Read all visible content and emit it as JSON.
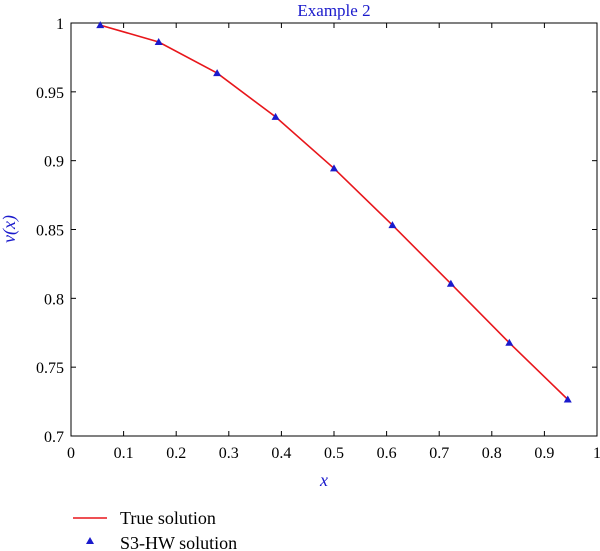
{
  "chart_data": {
    "type": "line",
    "title": "Example 2",
    "xlabel": "x",
    "ylabel": "v(x)",
    "xlim": [
      0,
      1
    ],
    "ylim": [
      0.7,
      1
    ],
    "x_ticks": [
      0,
      0.1,
      0.2,
      0.3,
      0.4,
      0.5,
      0.6,
      0.7,
      0.8,
      0.9,
      1
    ],
    "x_tick_labels": [
      "0",
      "0.1",
      "0.2",
      "0.3",
      "0.4",
      "0.5",
      "0.6",
      "0.7",
      "0.8",
      "0.9",
      "1"
    ],
    "y_ticks": [
      0.7,
      0.75,
      0.8,
      0.85,
      0.9,
      0.95,
      1
    ],
    "y_tick_labels": [
      "0.7",
      "0.75",
      "0.8",
      "0.85",
      "0.9",
      "0.95",
      "1"
    ],
    "grid": false,
    "legend_position": "below",
    "series": [
      {
        "name": "True solution",
        "kind": "line",
        "color": "#e8161b",
        "x": [
          0.0556,
          0.1667,
          0.2778,
          0.3889,
          0.5,
          0.6111,
          0.7222,
          0.8333,
          0.9444
        ],
        "y": [
          0.9985,
          0.9862,
          0.9636,
          0.9318,
          0.8944,
          0.8532,
          0.8106,
          0.7677,
          0.7265
        ]
      },
      {
        "name": "S3-HW solution",
        "kind": "marker",
        "marker": "triangle",
        "color": "#1a1acc",
        "x": [
          0.0556,
          0.1667,
          0.2778,
          0.3889,
          0.5,
          0.6111,
          0.7222,
          0.8333,
          0.9444
        ],
        "y": [
          0.9985,
          0.9862,
          0.9636,
          0.9318,
          0.8944,
          0.8532,
          0.8106,
          0.7677,
          0.7265
        ]
      }
    ]
  }
}
